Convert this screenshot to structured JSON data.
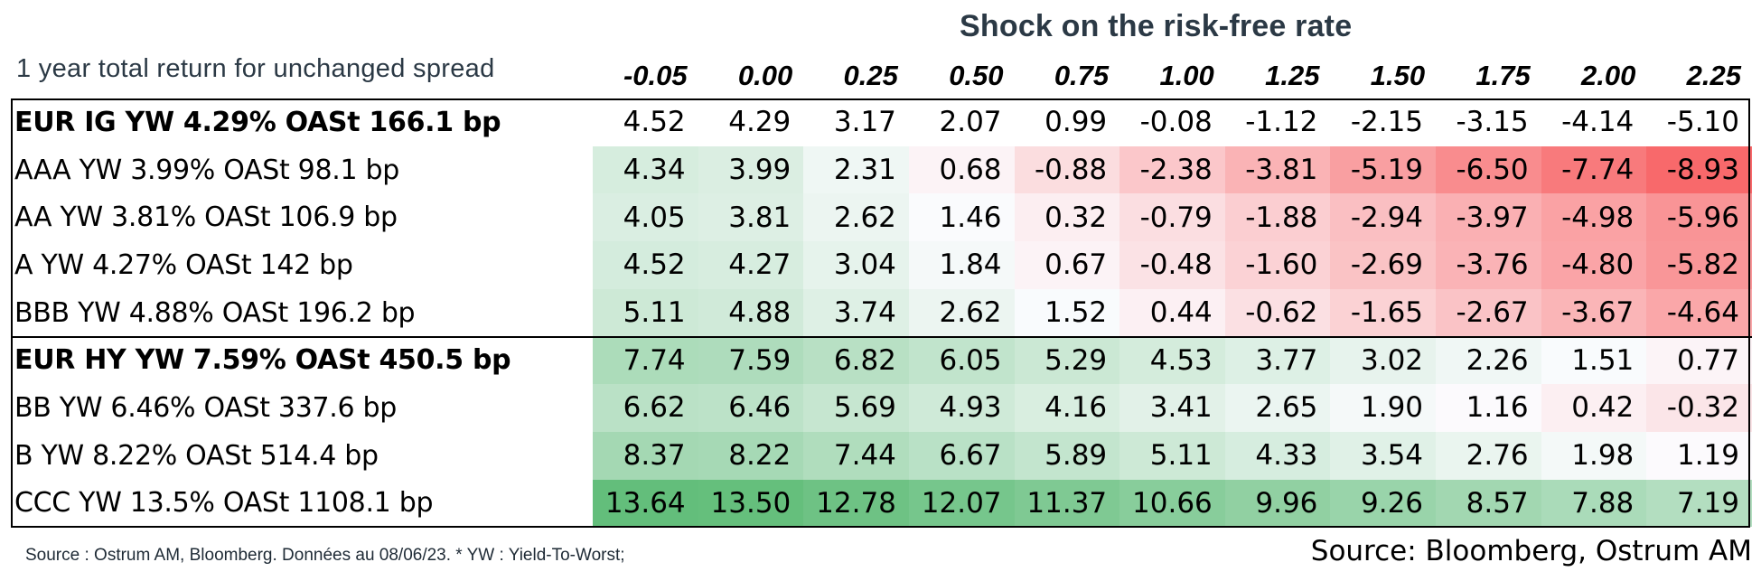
{
  "header": {
    "super_title": "Shock on the risk-free rate",
    "left_title": "1 year total return for unchanged spread"
  },
  "footer": {
    "footnote": "Source : Ostrum AM, Bloomberg. Données au 08/06/23. * YW : Yield-To-Worst;",
    "source": "Source: Bloomberg, Ostrum AM"
  },
  "colors": {
    "positive_max": "#63be7b",
    "neutral": "#fcfcff",
    "negative_max": "#f8696b",
    "text": "#000000",
    "title_text": "#2b3945"
  },
  "chart_data": {
    "type": "heatmap",
    "columns": [
      "-0.05",
      "0.00",
      "0.25",
      "0.50",
      "0.75",
      "1.00",
      "1.25",
      "1.50",
      "1.75",
      "2.00",
      "2.25"
    ],
    "rows": [
      {
        "label": "EUR IG YW 4.29% OASt 166.1 bp",
        "aggregate": true,
        "shaded": false,
        "values": [
          "4.52",
          "4.29",
          "3.17",
          "2.07",
          "0.99",
          "-0.08",
          "-1.12",
          "-2.15",
          "-3.15",
          "-4.14",
          "-5.10"
        ]
      },
      {
        "label": "AAA YW 3.99% OASt 98.1 bp",
        "aggregate": false,
        "shaded": true,
        "values": [
          "4.34",
          "3.99",
          "2.31",
          "0.68",
          "-0.88",
          "-2.38",
          "-3.81",
          "-5.19",
          "-6.50",
          "-7.74",
          "-8.93"
        ]
      },
      {
        "label": "AA YW 3.81% OASt 106.9 bp",
        "aggregate": false,
        "shaded": true,
        "values": [
          "4.05",
          "3.81",
          "2.62",
          "1.46",
          "0.32",
          "-0.79",
          "-1.88",
          "-2.94",
          "-3.97",
          "-4.98",
          "-5.96"
        ]
      },
      {
        "label": "A YW 4.27% OASt 142 bp",
        "aggregate": false,
        "shaded": true,
        "values": [
          "4.52",
          "4.27",
          "3.04",
          "1.84",
          "0.67",
          "-0.48",
          "-1.60",
          "-2.69",
          "-3.76",
          "-4.80",
          "-5.82"
        ]
      },
      {
        "label": "BBB YW 4.88% OASt 196.2 bp",
        "aggregate": false,
        "shaded": true,
        "values": [
          "5.11",
          "4.88",
          "3.74",
          "2.62",
          "1.52",
          "0.44",
          "-0.62",
          "-1.65",
          "-2.67",
          "-3.67",
          "-4.64"
        ]
      },
      {
        "label": "EUR HY YW 7.59% OASt 450.5 bp",
        "aggregate": true,
        "shaded": true,
        "values": [
          "7.74",
          "7.59",
          "6.82",
          "6.05",
          "5.29",
          "4.53",
          "3.77",
          "3.02",
          "2.26",
          "1.51",
          "0.77"
        ]
      },
      {
        "label": "BB YW 6.46% OASt 337.6 bp",
        "aggregate": false,
        "shaded": true,
        "values": [
          "6.62",
          "6.46",
          "5.69",
          "4.93",
          "4.16",
          "3.41",
          "2.65",
          "1.90",
          "1.16",
          "0.42",
          "-0.32"
        ]
      },
      {
        "label": "B YW 8.22% OASt 514.4 bp",
        "aggregate": false,
        "shaded": true,
        "values": [
          "8.37",
          "8.22",
          "7.44",
          "6.67",
          "5.89",
          "5.11",
          "4.33",
          "3.54",
          "2.76",
          "1.98",
          "1.19"
        ]
      },
      {
        "label": "CCC YW 13.5% OASt 1108.1 bp",
        "aggregate": false,
        "shaded": true,
        "values": [
          "13.64",
          "13.50",
          "12.78",
          "12.07",
          "11.37",
          "10.66",
          "9.96",
          "9.26",
          "8.57",
          "7.88",
          "7.19"
        ]
      }
    ]
  }
}
